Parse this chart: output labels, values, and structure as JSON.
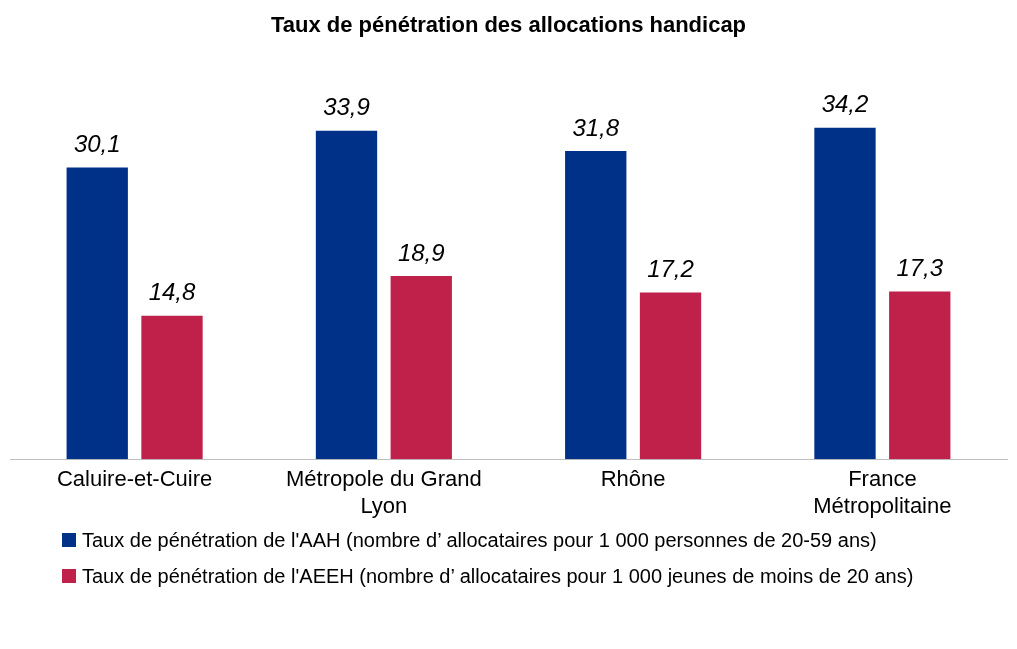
{
  "chart_data": {
    "type": "bar",
    "title": "Taux de pénétration des allocations handicap",
    "categories": [
      "Caluire-et-Cuire",
      "Métropole du Grand Lyon",
      "Rhône",
      "France Métropolitaine"
    ],
    "series": [
      {
        "name": "Taux de pénétration de l'AAH (nombre d’ allocataires pour 1 000 personnes de 20-59 ans)",
        "color": "#003189",
        "values": [
          30.1,
          33.9,
          31.8,
          34.2
        ],
        "value_labels": [
          "30,1",
          "33,9",
          "31,8",
          "34,2"
        ]
      },
      {
        "name": "Taux de pénétration de l'AEEH (nombre d’ allocataires pour 1 000 jeunes de moins de 20 ans)",
        "color": "#c0214a",
        "values": [
          14.8,
          18.9,
          17.2,
          17.3
        ],
        "value_labels": [
          "14,8",
          "18,9",
          "17,2",
          "17,3"
        ]
      }
    ],
    "grid": false,
    "legend": "bottom",
    "tick_labels": "x"
  }
}
